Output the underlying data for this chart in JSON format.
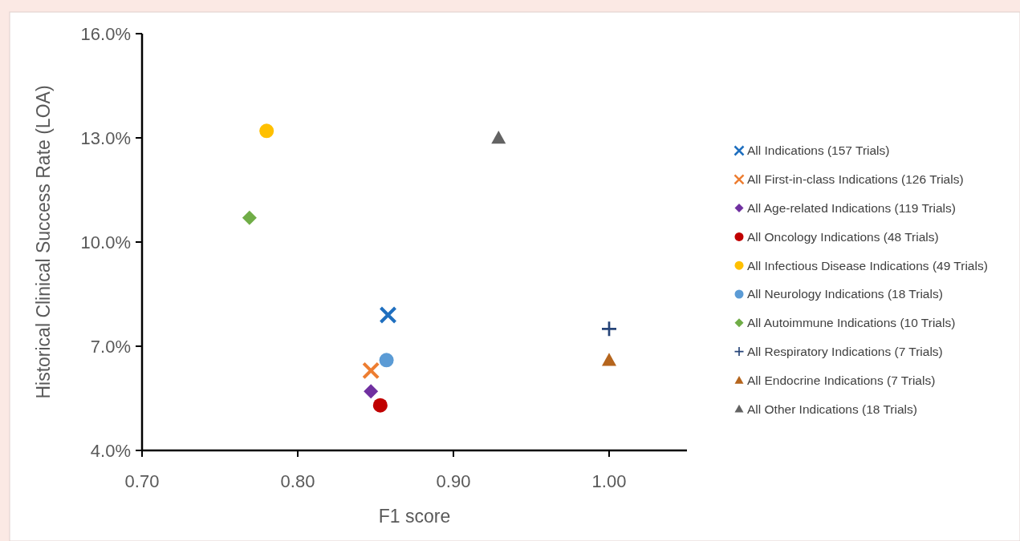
{
  "chart_data": {
    "type": "scatter",
    "xlabel": "F1 score",
    "ylabel": "Historical Clinical Success Rate (LOA)",
    "xlim": [
      0.7,
      1.05
    ],
    "xticks": [
      {
        "value": 0.7,
        "label": "0.70"
      },
      {
        "value": 0.8,
        "label": "0.80"
      },
      {
        "value": 0.9,
        "label": "0.90"
      },
      {
        "value": 1.0,
        "label": "1.00"
      }
    ],
    "ylim": [
      4,
      16
    ],
    "yticks": [
      {
        "value": 4,
        "label": "4.0%"
      },
      {
        "value": 7,
        "label": "7.0%"
      },
      {
        "value": 10,
        "label": "10.0%"
      },
      {
        "value": 13,
        "label": "13.0%"
      },
      {
        "value": 16,
        "label": "16.0%"
      }
    ],
    "grid": false,
    "legend": "right",
    "series": [
      {
        "name": "All Indications (157 Trials)",
        "color": "#1f6fbf",
        "marker": "cross",
        "x": [
          0.858
        ],
        "values": [
          7.9
        ]
      },
      {
        "name": "All First-in-class Indications (126 Trials)",
        "color": "#ed7d31",
        "marker": "cross",
        "x": [
          0.847
        ],
        "values": [
          6.3
        ]
      },
      {
        "name": "All Age-related Indications (119 Trials)",
        "color": "#7030a0",
        "marker": "diamond",
        "x": [
          0.847
        ],
        "values": [
          5.7
        ]
      },
      {
        "name": "All Oncology Indications (48 Trials)",
        "color": "#c00000",
        "marker": "circle",
        "x": [
          0.853
        ],
        "values": [
          5.3
        ]
      },
      {
        "name": "All Infectious Disease Indications (49 Trials)",
        "color": "#ffc000",
        "marker": "circle",
        "x": [
          0.78
        ],
        "values": [
          13.2
        ]
      },
      {
        "name": "All Neurology Indications (18 Trials)",
        "color": "#5b9bd5",
        "marker": "circle",
        "x": [
          0.857
        ],
        "values": [
          6.6
        ]
      },
      {
        "name": "All Autoimmune Indications (10 Trials)",
        "color": "#70ad47",
        "marker": "diamond",
        "x": [
          0.769
        ],
        "values": [
          10.7
        ]
      },
      {
        "name": "All Respiratory Indications (7 Trials)",
        "color": "#264478",
        "marker": "plus",
        "x": [
          1.0
        ],
        "values": [
          7.5
        ]
      },
      {
        "name": "All Endocrine Indications (7 Trials)",
        "color": "#b5651d",
        "marker": "triangle",
        "x": [
          1.0
        ],
        "values": [
          6.6
        ]
      },
      {
        "name": "All Other Indications (18 Trials)",
        "color": "#636363",
        "marker": "triangle",
        "x": [
          0.929
        ],
        "values": [
          13.0
        ]
      }
    ]
  }
}
